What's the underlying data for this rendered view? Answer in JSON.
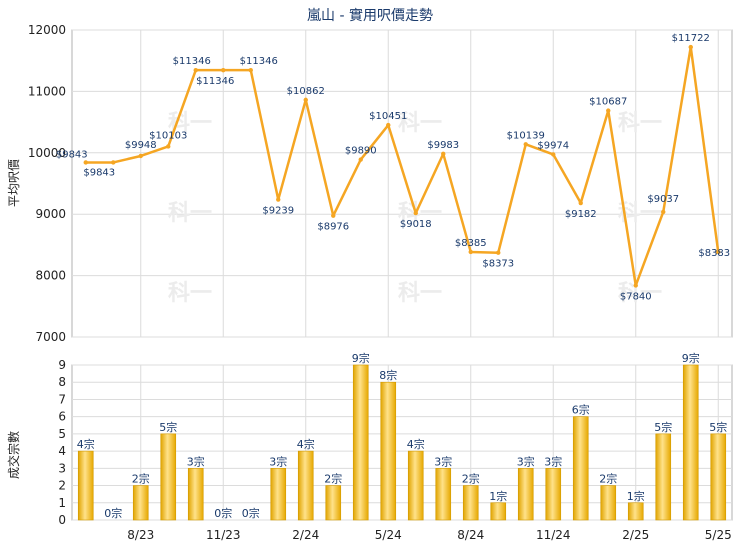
{
  "chart_data": [
    {
      "type": "line",
      "title": "嵐山 - 實用呎價走勢",
      "xlabel": "",
      "ylabel": "平均呎價",
      "ylim": [
        7000,
        12000
      ],
      "yticks": [
        "7000",
        "8000",
        "9000",
        "10000",
        "11000",
        "12000"
      ],
      "grid": true,
      "color": "#f5a623",
      "series": [
        {
          "values": [
            9843,
            9843,
            9948,
            10103,
            11346,
            11346,
            11346,
            9239,
            10862,
            8976,
            9890,
            10451,
            9018,
            9983,
            8385,
            8373,
            10139,
            9974,
            9182,
            10687,
            7840,
            9037,
            11722,
            8383
          ]
        }
      ],
      "data_labels": [
        "$9843",
        "$9843",
        "$9948",
        "$10103",
        "$11346",
        "$11346",
        "$11346",
        "$9239",
        "$10862",
        "$8976",
        "$9890",
        "$10451",
        "$9018",
        "$9983",
        "$8385",
        "$8373",
        "$10139",
        "$9974",
        "$9182",
        "$10687",
        "$7840",
        "$9037",
        "$11722",
        "$8383"
      ]
    },
    {
      "type": "bar",
      "xlabel": "",
      "ylabel": "成交宗數",
      "ylim": [
        0,
        9
      ],
      "yticks": [
        "0",
        "1",
        "2",
        "3",
        "4",
        "5",
        "6",
        "7",
        "8",
        "9"
      ],
      "grid": true,
      "color": "#f5b800",
      "series": [
        {
          "values": [
            4,
            0,
            2,
            5,
            3,
            0,
            0,
            3,
            4,
            2,
            9,
            8,
            4,
            3,
            2,
            1,
            3,
            3,
            6,
            2,
            1,
            5,
            9,
            5
          ]
        }
      ],
      "data_labels": [
        "4宗",
        "0宗",
        "2宗",
        "5宗",
        "3宗",
        "0宗",
        "0宗",
        "3宗",
        "4宗",
        "2宗",
        "9宗",
        "8宗",
        "4宗",
        "3宗",
        "2宗",
        "1宗",
        "3宗",
        "3宗",
        "6宗",
        "2宗",
        "1宗",
        "5宗",
        "9宗",
        "5宗"
      ],
      "x_tick_labels": [
        "8/23",
        "11/23",
        "2/24",
        "5/24",
        "8/24",
        "11/24",
        "2/25",
        "5/25"
      ],
      "x_tick_index": [
        2,
        5,
        8,
        11,
        14,
        17,
        20,
        23
      ]
    }
  ],
  "watermark": "科一"
}
